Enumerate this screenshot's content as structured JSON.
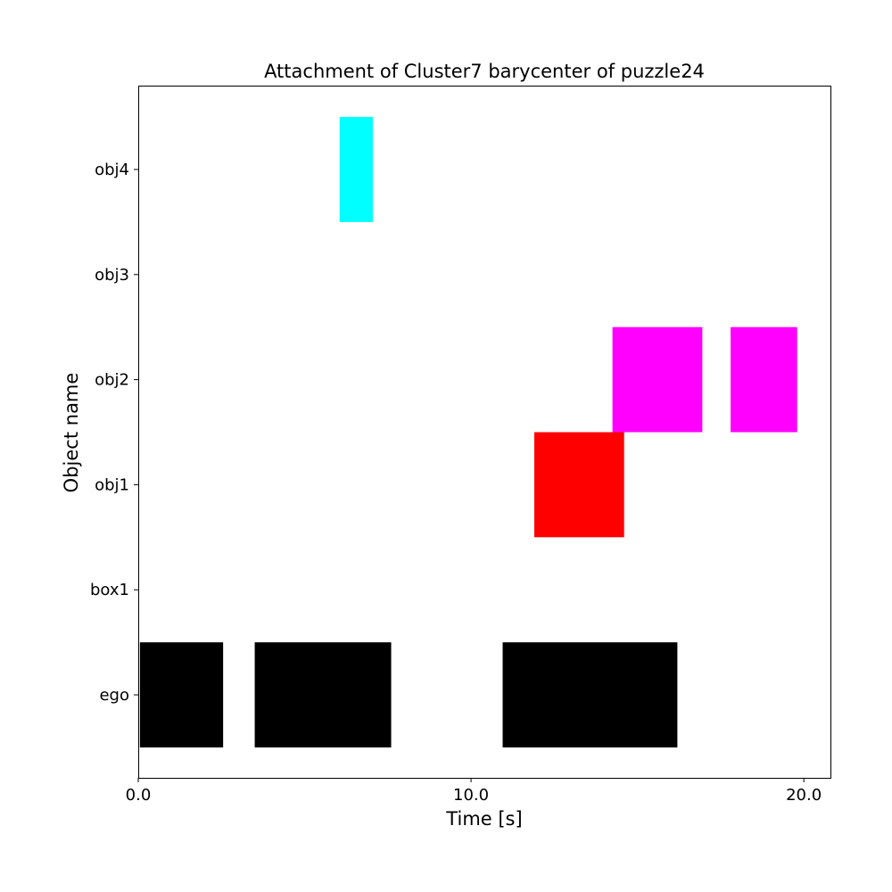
{
  "chart_data": {
    "type": "gantt",
    "title": "Attachment of Cluster7 barycenter of puzzle24",
    "xlabel": "Time [s]",
    "ylabel": "Object name",
    "xlim": [
      0.0,
      20.8
    ],
    "xticks": [
      0.0,
      10.0,
      20.0
    ],
    "xtick_labels": [
      "0.0",
      "10.0",
      "20.0"
    ],
    "categories": [
      "ego",
      "box1",
      "obj1",
      "obj2",
      "obj3",
      "obj4"
    ],
    "grid": false,
    "series": [
      {
        "category": "ego",
        "color": "#000000",
        "intervals": [
          [
            0.05,
            2.55
          ],
          [
            3.5,
            7.6
          ],
          [
            10.95,
            16.2
          ]
        ]
      },
      {
        "category": "box1",
        "color": "#000000",
        "intervals": []
      },
      {
        "category": "obj1",
        "color": "#ff0000",
        "intervals": [
          [
            11.9,
            14.6
          ]
        ]
      },
      {
        "category": "obj2",
        "color": "#ff00ff",
        "intervals": [
          [
            14.25,
            16.95
          ],
          [
            17.8,
            19.8
          ]
        ]
      },
      {
        "category": "obj3",
        "color": "#000000",
        "intervals": []
      },
      {
        "category": "obj4",
        "color": "#00ffff",
        "intervals": [
          [
            6.05,
            7.05
          ]
        ]
      }
    ]
  }
}
